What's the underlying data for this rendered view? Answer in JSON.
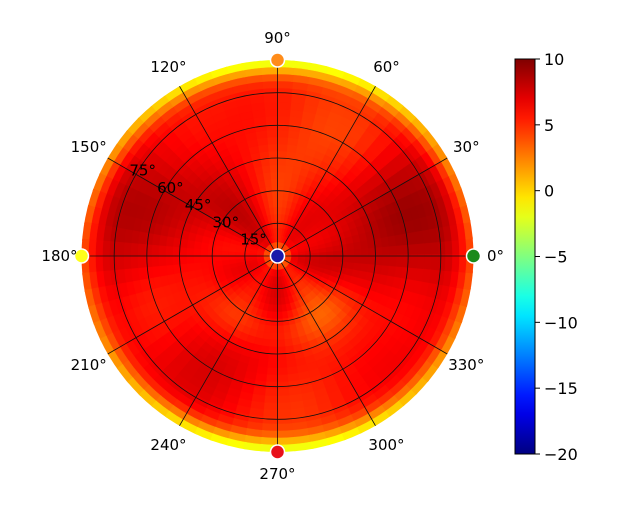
{
  "chart_data": {
    "type": "heatmap",
    "projection": "polar",
    "title": "",
    "angular_ticks": [
      "0°",
      "30°",
      "60°",
      "90°",
      "120°",
      "150°",
      "180°",
      "210°",
      "240°",
      "270°",
      "300°",
      "330°"
    ],
    "radial_ticks": [
      "15°",
      "30°",
      "45°",
      "60°",
      "75°"
    ],
    "radial_tick_values": [
      15,
      30,
      45,
      60,
      75
    ],
    "radial_range": [
      0,
      90
    ],
    "grid": true,
    "colormap": "jet",
    "colorbar": {
      "range": [
        -20,
        10
      ],
      "ticks": [
        10,
        5,
        0,
        -5,
        -10,
        -15,
        -20
      ],
      "tick_labels": [
        "10",
        "5",
        "0",
        "−5",
        "−10",
        "−15",
        "−20"
      ],
      "placement": "right"
    },
    "markers": [
      {
        "azimuth": 0,
        "elevation": 0,
        "value": -5,
        "color": "#1a8a1a"
      },
      {
        "azimuth": 90,
        "elevation": 0,
        "value": 5,
        "color": "#ff8c1a"
      },
      {
        "azimuth": 180,
        "elevation": 0,
        "value": 0,
        "color": "#ffff1a"
      },
      {
        "azimuth": 270,
        "elevation": 0,
        "value": 9,
        "color": "#e8101a"
      },
      {
        "azimuth": 0,
        "elevation": 90,
        "value": -19,
        "color": "#1a1aaa"
      }
    ],
    "approx_values": {
      "center_region": 6,
      "zenith": -20,
      "horizon_north": 1,
      "horizon_south": 0,
      "horizon_east": 3,
      "horizon_west": 2
    }
  }
}
